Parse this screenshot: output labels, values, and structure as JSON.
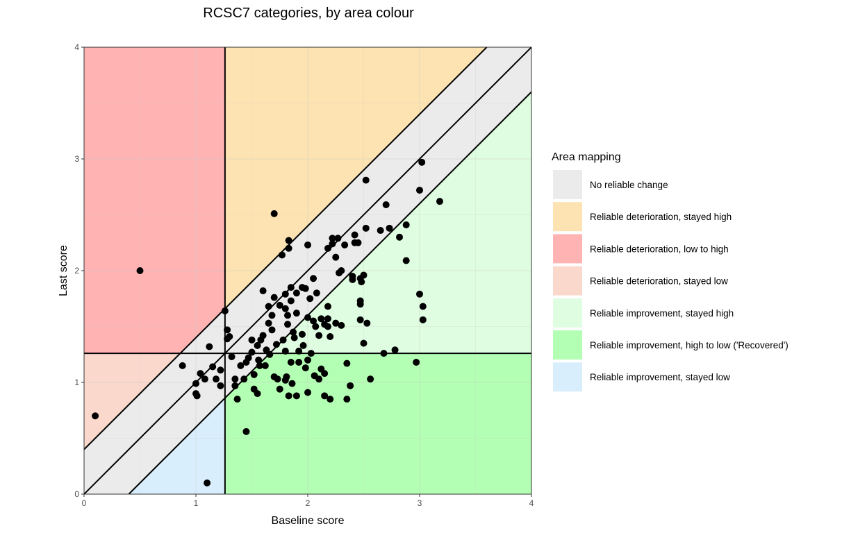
{
  "chart_data": {
    "type": "scatter",
    "title": "RCSC7 categories, by area colour",
    "xlabel": "Baseline score",
    "ylabel": "Last score",
    "xlim": [
      0,
      4
    ],
    "ylim": [
      0,
      4
    ],
    "x_ticks": [
      0,
      1,
      2,
      3,
      4
    ],
    "y_ticks": [
      0,
      1,
      2,
      3,
      4
    ],
    "x_tick_labels": [
      "0",
      "1",
      "2",
      "3",
      "4"
    ],
    "y_tick_labels": [
      "0",
      "1",
      "2",
      "3",
      "4"
    ],
    "grid": true,
    "cutoff": 1.26,
    "rci": 0.4,
    "legend": {
      "title": "Area mapping",
      "placement": "right",
      "entries": [
        {
          "label": "No reliable change",
          "color": "#EBEBEB"
        },
        {
          "label": "Reliable deterioration, stayed high",
          "color": "#FDE3B1"
        },
        {
          "label": "Reliable deterioration, low to high",
          "color": "#FFB3B3"
        },
        {
          "label": "Reliable deterioration, stayed low",
          "color": "#FAD8CB"
        },
        {
          "label": "Reliable improvement, stayed high",
          "color": "#DFFDE0"
        },
        {
          "label": "Reliable improvement, high to low ('Recovered')",
          "color": "#B3FFB3"
        },
        {
          "label": "Reliable improvement, stayed low",
          "color": "#D9EEFC"
        }
      ]
    },
    "points": [
      [
        0.1,
        0.7
      ],
      [
        0.5,
        2.0
      ],
      [
        1.1,
        0.1
      ],
      [
        0.88,
        1.15
      ],
      [
        1.12,
        1.32
      ],
      [
        1.0,
        0.99
      ],
      [
        1.0,
        0.9
      ],
      [
        1.01,
        0.88
      ],
      [
        1.04,
        1.08
      ],
      [
        1.08,
        1.03
      ],
      [
        1.15,
        1.14
      ],
      [
        1.18,
        1.03
      ],
      [
        1.22,
        1.11
      ],
      [
        1.22,
        0.97
      ],
      [
        1.26,
        1.64
      ],
      [
        1.28,
        1.47
      ],
      [
        1.3,
        1.41
      ],
      [
        1.28,
        1.39
      ],
      [
        1.32,
        1.23
      ],
      [
        1.35,
        1.03
      ],
      [
        1.35,
        0.97
      ],
      [
        1.37,
        0.85
      ],
      [
        1.4,
        1.15
      ],
      [
        1.43,
        1.03
      ],
      [
        1.45,
        0.56
      ],
      [
        1.45,
        1.18
      ],
      [
        1.47,
        1.22
      ],
      [
        1.5,
        1.27
      ],
      [
        1.5,
        1.38
      ],
      [
        1.52,
        1.07
      ],
      [
        1.52,
        0.94
      ],
      [
        1.55,
        0.9
      ],
      [
        1.55,
        1.33
      ],
      [
        1.56,
        1.2
      ],
      [
        1.57,
        1.15
      ],
      [
        1.58,
        1.38
      ],
      [
        1.6,
        1.82
      ],
      [
        1.6,
        1.42
      ],
      [
        1.62,
        1.15
      ],
      [
        1.63,
        1.29
      ],
      [
        1.65,
        1.53
      ],
      [
        1.65,
        1.68
      ],
      [
        1.66,
        1.25
      ],
      [
        1.68,
        1.6
      ],
      [
        1.68,
        1.47
      ],
      [
        1.7,
        1.76
      ],
      [
        1.7,
        1.05
      ],
      [
        1.7,
        2.51
      ],
      [
        1.72,
        1.34
      ],
      [
        1.73,
        1.03
      ],
      [
        1.75,
        1.69
      ],
      [
        1.75,
        0.94
      ],
      [
        1.77,
        2.14
      ],
      [
        1.78,
        1.38
      ],
      [
        1.8,
        1.79
      ],
      [
        1.8,
        1.66
      ],
      [
        1.8,
        1.28
      ],
      [
        1.8,
        1.02
      ],
      [
        1.81,
        1.05
      ],
      [
        1.82,
        1.6
      ],
      [
        1.82,
        1.52
      ],
      [
        1.83,
        2.27
      ],
      [
        1.83,
        2.2
      ],
      [
        1.83,
        0.88
      ],
      [
        1.85,
        1.85
      ],
      [
        1.85,
        1.73
      ],
      [
        1.85,
        1.18
      ],
      [
        1.86,
        0.99
      ],
      [
        1.87,
        1.45
      ],
      [
        1.88,
        1.4
      ],
      [
        1.9,
        1.8
      ],
      [
        1.9,
        1.62
      ],
      [
        1.9,
        0.88
      ],
      [
        1.92,
        1.28
      ],
      [
        1.92,
        1.18
      ],
      [
        1.95,
        1.85
      ],
      [
        1.95,
        1.43
      ],
      [
        1.96,
        1.33
      ],
      [
        1.98,
        1.13
      ],
      [
        1.98,
        1.84
      ],
      [
        2.0,
        2.23
      ],
      [
        2.0,
        1.58
      ],
      [
        2.0,
        1.2
      ],
      [
        2.0,
        0.91
      ],
      [
        2.02,
        1.75
      ],
      [
        2.03,
        1.26
      ],
      [
        2.05,
        1.93
      ],
      [
        2.05,
        1.55
      ],
      [
        2.06,
        1.06
      ],
      [
        2.07,
        1.5
      ],
      [
        2.08,
        1.8
      ],
      [
        2.1,
        1.42
      ],
      [
        2.1,
        1.03
      ],
      [
        2.12,
        1.12
      ],
      [
        2.12,
        1.57
      ],
      [
        2.15,
        1.52
      ],
      [
        2.15,
        1.08
      ],
      [
        2.15,
        0.88
      ],
      [
        2.18,
        1.68
      ],
      [
        2.18,
        1.5
      ],
      [
        2.18,
        1.57
      ],
      [
        2.18,
        2.2
      ],
      [
        2.2,
        0.85
      ],
      [
        2.2,
        1.41
      ],
      [
        2.22,
        2.29
      ],
      [
        2.22,
        2.24
      ],
      [
        2.25,
        1.53
      ],
      [
        2.25,
        2.12
      ],
      [
        2.27,
        2.29
      ],
      [
        2.28,
        1.98
      ],
      [
        2.3,
        2.0
      ],
      [
        2.3,
        1.51
      ],
      [
        2.33,
        2.23
      ],
      [
        2.35,
        1.17
      ],
      [
        2.35,
        0.85
      ],
      [
        2.38,
        0.97
      ],
      [
        2.4,
        1.92
      ],
      [
        2.4,
        1.95
      ],
      [
        2.42,
        2.25
      ],
      [
        2.42,
        2.32
      ],
      [
        2.45,
        2.25
      ],
      [
        2.47,
        1.93
      ],
      [
        2.47,
        1.73
      ],
      [
        2.47,
        1.7
      ],
      [
        2.47,
        1.56
      ],
      [
        2.48,
        1.9
      ],
      [
        2.5,
        1.96
      ],
      [
        2.5,
        1.35
      ],
      [
        2.52,
        2.38
      ],
      [
        2.52,
        2.81
      ],
      [
        2.53,
        1.53
      ],
      [
        2.56,
        1.03
      ],
      [
        2.65,
        2.36
      ],
      [
        2.68,
        1.26
      ],
      [
        2.7,
        2.59
      ],
      [
        2.73,
        2.38
      ],
      [
        2.78,
        1.29
      ],
      [
        2.82,
        2.3
      ],
      [
        2.88,
        2.41
      ],
      [
        2.88,
        2.09
      ],
      [
        2.97,
        1.18
      ],
      [
        3.0,
        1.79
      ],
      [
        3.0,
        2.72
      ],
      [
        3.02,
        2.97
      ],
      [
        3.03,
        1.68
      ],
      [
        3.03,
        1.56
      ],
      [
        3.18,
        2.62
      ]
    ]
  }
}
